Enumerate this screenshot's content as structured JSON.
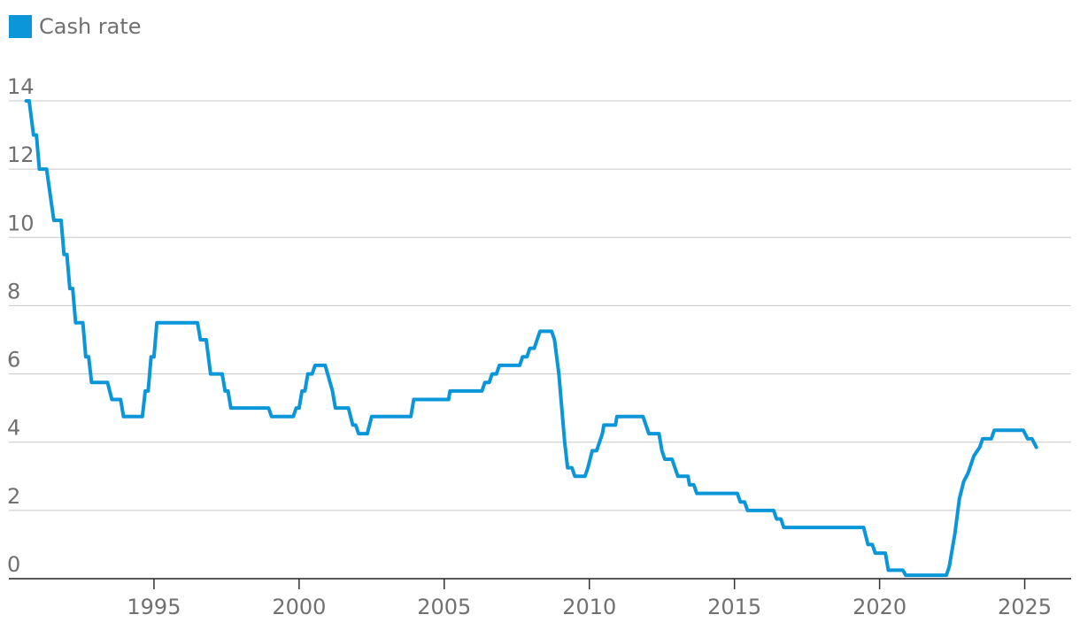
{
  "chart_data": {
    "type": "line",
    "title": "",
    "xlabel": "",
    "ylabel": "",
    "xlim": [
      1990.0,
      2026.6
    ],
    "ylim": [
      0,
      14
    ],
    "y_ticks": [
      0,
      2,
      4,
      6,
      8,
      10,
      12,
      14
    ],
    "x_ticks": [
      1995,
      2000,
      2005,
      2010,
      2015,
      2020,
      2025
    ],
    "grid": "horizontal",
    "legend": {
      "position": "top-left"
    },
    "series": [
      {
        "name": "Cash rate",
        "color": "#0a96d8",
        "points": [
          [
            1990.6,
            14.0
          ],
          [
            1990.7,
            14.0
          ],
          [
            1990.85,
            13.0
          ],
          [
            1990.95,
            13.0
          ],
          [
            1991.05,
            12.0
          ],
          [
            1991.3,
            12.0
          ],
          [
            1991.55,
            10.5
          ],
          [
            1991.8,
            10.5
          ],
          [
            1991.9,
            9.5
          ],
          [
            1992.0,
            9.5
          ],
          [
            1992.1,
            8.5
          ],
          [
            1992.2,
            8.5
          ],
          [
            1992.3,
            7.5
          ],
          [
            1992.55,
            7.5
          ],
          [
            1992.65,
            6.5
          ],
          [
            1992.75,
            6.5
          ],
          [
            1992.85,
            5.75
          ],
          [
            1993.4,
            5.75
          ],
          [
            1993.55,
            5.25
          ],
          [
            1993.85,
            5.25
          ],
          [
            1993.95,
            4.75
          ],
          [
            1994.6,
            4.75
          ],
          [
            1994.7,
            5.5
          ],
          [
            1994.8,
            5.5
          ],
          [
            1994.9,
            6.5
          ],
          [
            1995.0,
            6.5
          ],
          [
            1995.1,
            7.5
          ],
          [
            1996.5,
            7.5
          ],
          [
            1996.6,
            7.0
          ],
          [
            1996.8,
            7.0
          ],
          [
            1996.95,
            6.0
          ],
          [
            1997.35,
            6.0
          ],
          [
            1997.45,
            5.5
          ],
          [
            1997.55,
            5.5
          ],
          [
            1997.65,
            5.0
          ],
          [
            1998.95,
            5.0
          ],
          [
            1999.05,
            4.75
          ],
          [
            1999.8,
            4.75
          ],
          [
            1999.9,
            5.0
          ],
          [
            2000.0,
            5.0
          ],
          [
            2000.1,
            5.5
          ],
          [
            2000.2,
            5.5
          ],
          [
            2000.3,
            6.0
          ],
          [
            2000.45,
            6.0
          ],
          [
            2000.55,
            6.25
          ],
          [
            2000.9,
            6.25
          ],
          [
            2001.15,
            5.5
          ],
          [
            2001.25,
            5.0
          ],
          [
            2001.7,
            5.0
          ],
          [
            2001.85,
            4.5
          ],
          [
            2001.95,
            4.5
          ],
          [
            2002.05,
            4.25
          ],
          [
            2002.35,
            4.25
          ],
          [
            2002.5,
            4.75
          ],
          [
            2003.85,
            4.75
          ],
          [
            2003.95,
            5.25
          ],
          [
            2005.15,
            5.25
          ],
          [
            2005.2,
            5.5
          ],
          [
            2006.3,
            5.5
          ],
          [
            2006.4,
            5.75
          ],
          [
            2006.55,
            5.75
          ],
          [
            2006.65,
            6.0
          ],
          [
            2006.8,
            6.0
          ],
          [
            2006.9,
            6.25
          ],
          [
            2007.6,
            6.25
          ],
          [
            2007.7,
            6.5
          ],
          [
            2007.85,
            6.5
          ],
          [
            2007.95,
            6.75
          ],
          [
            2008.1,
            6.75
          ],
          [
            2008.2,
            7.0
          ],
          [
            2008.3,
            7.25
          ],
          [
            2008.7,
            7.25
          ],
          [
            2008.8,
            7.0
          ],
          [
            2008.95,
            6.0
          ],
          [
            2009.05,
            5.0
          ],
          [
            2009.15,
            4.0
          ],
          [
            2009.25,
            3.25
          ],
          [
            2009.4,
            3.25
          ],
          [
            2009.5,
            3.0
          ],
          [
            2009.85,
            3.0
          ],
          [
            2009.95,
            3.25
          ],
          [
            2010.1,
            3.75
          ],
          [
            2010.25,
            3.75
          ],
          [
            2010.35,
            4.0
          ],
          [
            2010.45,
            4.25
          ],
          [
            2010.5,
            4.5
          ],
          [
            2010.9,
            4.5
          ],
          [
            2010.95,
            4.75
          ],
          [
            2011.85,
            4.75
          ],
          [
            2011.95,
            4.5
          ],
          [
            2012.05,
            4.25
          ],
          [
            2012.4,
            4.25
          ],
          [
            2012.5,
            3.75
          ],
          [
            2012.6,
            3.5
          ],
          [
            2012.85,
            3.5
          ],
          [
            2012.95,
            3.25
          ],
          [
            2013.05,
            3.0
          ],
          [
            2013.4,
            3.0
          ],
          [
            2013.45,
            2.75
          ],
          [
            2013.6,
            2.75
          ],
          [
            2013.7,
            2.5
          ],
          [
            2015.1,
            2.5
          ],
          [
            2015.2,
            2.25
          ],
          [
            2015.35,
            2.25
          ],
          [
            2015.45,
            2.0
          ],
          [
            2016.35,
            2.0
          ],
          [
            2016.45,
            1.75
          ],
          [
            2016.6,
            1.75
          ],
          [
            2016.7,
            1.5
          ],
          [
            2019.45,
            1.5
          ],
          [
            2019.6,
            1.0
          ],
          [
            2019.75,
            1.0
          ],
          [
            2019.85,
            0.75
          ],
          [
            2020.2,
            0.75
          ],
          [
            2020.3,
            0.25
          ],
          [
            2020.8,
            0.25
          ],
          [
            2020.9,
            0.1
          ],
          [
            2022.3,
            0.1
          ],
          [
            2022.4,
            0.35
          ],
          [
            2022.6,
            1.35
          ],
          [
            2022.75,
            2.35
          ],
          [
            2022.9,
            2.85
          ],
          [
            2023.05,
            3.1
          ],
          [
            2023.15,
            3.35
          ],
          [
            2023.25,
            3.6
          ],
          [
            2023.45,
            3.85
          ],
          [
            2023.55,
            4.1
          ],
          [
            2023.85,
            4.1
          ],
          [
            2023.95,
            4.35
          ],
          [
            2024.95,
            4.35
          ],
          [
            2025.1,
            4.1
          ],
          [
            2025.25,
            4.1
          ],
          [
            2025.4,
            3.85
          ]
        ]
      }
    ]
  }
}
